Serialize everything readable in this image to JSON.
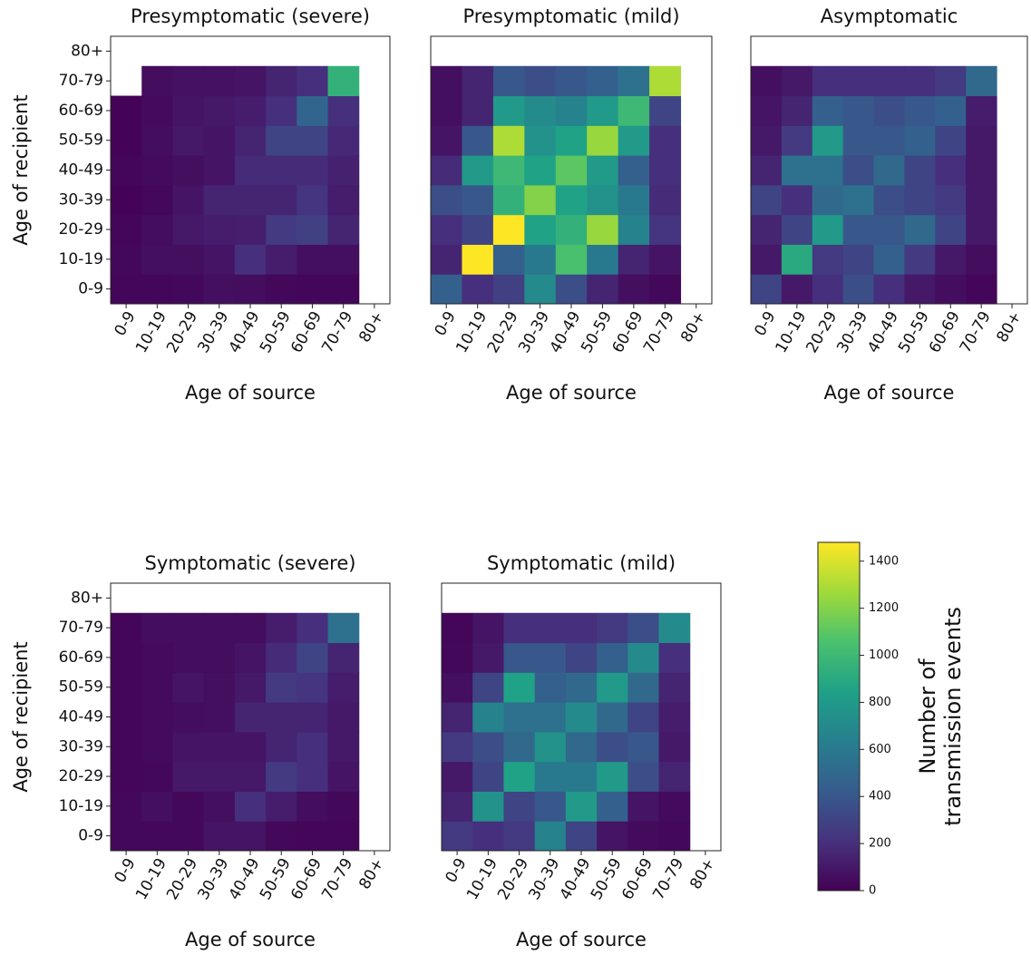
{
  "chart_data": [
    {
      "type": "heatmap",
      "title": "Presymptomatic (severe)",
      "x_label": "Age of source",
      "y_label": "Age of recipient",
      "x_categories": [
        "0-9",
        "10-19",
        "20-29",
        "30-39",
        "40-49",
        "50-59",
        "60-69",
        "70-79",
        "80+"
      ],
      "y_categories": [
        "0-9",
        "10-19",
        "20-29",
        "30-39",
        "40-49",
        "50-59",
        "60-69",
        "70-79",
        "80+"
      ],
      "values": [
        [
          20,
          20,
          30,
          60,
          50,
          30,
          20,
          20,
          null
        ],
        [
          30,
          60,
          60,
          80,
          200,
          120,
          60,
          60,
          null
        ],
        [
          20,
          50,
          100,
          120,
          130,
          250,
          280,
          150,
          null
        ],
        [
          10,
          30,
          80,
          150,
          150,
          150,
          220,
          120,
          null
        ],
        [
          20,
          40,
          60,
          80,
          180,
          180,
          180,
          140,
          null
        ],
        [
          10,
          50,
          100,
          80,
          150,
          300,
          300,
          170,
          null
        ],
        [
          10,
          40,
          80,
          100,
          120,
          200,
          480,
          200,
          null
        ],
        [
          null,
          50,
          70,
          70,
          80,
          150,
          200,
          950,
          null
        ],
        [
          null,
          null,
          null,
          null,
          null,
          null,
          null,
          null,
          null
        ]
      ]
    },
    {
      "type": "heatmap",
      "title": "Presymptomatic (mild)",
      "x_label": "Age of source",
      "x_categories": [
        "0-9",
        "10-19",
        "20-29",
        "30-39",
        "40-49",
        "50-59",
        "60-69",
        "70-79",
        "80+"
      ],
      "values": [
        [
          450,
          200,
          280,
          700,
          350,
          150,
          60,
          30,
          null
        ],
        [
          150,
          1480,
          450,
          600,
          1050,
          600,
          150,
          80,
          null
        ],
        [
          200,
          300,
          1480,
          850,
          950,
          1250,
          650,
          220,
          null
        ],
        [
          350,
          400,
          950,
          1200,
          850,
          750,
          600,
          180,
          null
        ],
        [
          180,
          800,
          1000,
          850,
          1100,
          800,
          450,
          200,
          null
        ],
        [
          80,
          400,
          1300,
          750,
          850,
          1250,
          800,
          200,
          null
        ],
        [
          60,
          150,
          800,
          700,
          650,
          800,
          1000,
          300,
          null
        ],
        [
          60,
          150,
          400,
          350,
          400,
          450,
          550,
          1300,
          null
        ],
        [
          null,
          null,
          null,
          null,
          null,
          null,
          null,
          null,
          null
        ]
      ]
    },
    {
      "type": "heatmap",
      "title": "Asymptomatic",
      "x_label": "Age of source",
      "x_categories": [
        "0-9",
        "10-19",
        "20-29",
        "30-39",
        "40-49",
        "50-59",
        "60-69",
        "70-79",
        "80+"
      ],
      "values": [
        [
          300,
          100,
          200,
          350,
          200,
          100,
          50,
          20,
          null
        ],
        [
          100,
          900,
          250,
          300,
          450,
          250,
          100,
          50,
          null
        ],
        [
          150,
          300,
          800,
          400,
          400,
          500,
          300,
          100,
          null
        ],
        [
          300,
          200,
          500,
          550,
          350,
          300,
          250,
          100,
          null
        ],
        [
          150,
          550,
          550,
          350,
          500,
          300,
          200,
          100,
          null
        ],
        [
          100,
          250,
          800,
          400,
          400,
          450,
          300,
          100,
          null
        ],
        [
          80,
          150,
          450,
          400,
          350,
          400,
          450,
          120,
          null
        ],
        [
          60,
          100,
          200,
          200,
          200,
          200,
          250,
          500,
          null
        ],
        [
          null,
          null,
          null,
          null,
          null,
          null,
          null,
          null,
          null
        ]
      ]
    },
    {
      "type": "heatmap",
      "title": "Symptomatic (severe)",
      "x_label": "Age of source",
      "y_label": "Age of recipient",
      "x_categories": [
        "0-9",
        "10-19",
        "20-29",
        "30-39",
        "40-49",
        "50-59",
        "60-69",
        "70-79",
        "80+"
      ],
      "y_categories": [
        "0-9",
        "10-19",
        "20-29",
        "30-39",
        "40-49",
        "50-59",
        "60-69",
        "70-79",
        "80+"
      ],
      "values": [
        [
          30,
          30,
          30,
          80,
          80,
          30,
          20,
          20,
          null
        ],
        [
          30,
          60,
          30,
          60,
          200,
          120,
          50,
          30,
          null
        ],
        [
          20,
          30,
          100,
          100,
          100,
          250,
          200,
          80,
          null
        ],
        [
          20,
          40,
          80,
          80,
          80,
          150,
          200,
          100,
          null
        ],
        [
          20,
          40,
          50,
          60,
          150,
          150,
          150,
          100,
          null
        ],
        [
          20,
          40,
          80,
          60,
          100,
          250,
          220,
          120,
          null
        ],
        [
          20,
          40,
          50,
          50,
          80,
          180,
          300,
          150,
          null
        ],
        [
          20,
          50,
          50,
          50,
          50,
          120,
          200,
          550,
          null
        ],
        [
          null,
          null,
          null,
          null,
          null,
          null,
          null,
          null,
          null
        ]
      ]
    },
    {
      "type": "heatmap",
      "title": "Symptomatic (mild)",
      "x_label": "Age of source",
      "x_categories": [
        "0-9",
        "10-19",
        "20-29",
        "30-39",
        "40-49",
        "50-59",
        "60-69",
        "70-79",
        "80+"
      ],
      "values": [
        [
          250,
          200,
          250,
          650,
          300,
          80,
          40,
          30,
          null
        ],
        [
          150,
          750,
          300,
          400,
          800,
          450,
          80,
          40,
          null
        ],
        [
          100,
          300,
          850,
          600,
          600,
          800,
          350,
          150,
          null
        ],
        [
          250,
          350,
          500,
          750,
          500,
          350,
          400,
          100,
          null
        ],
        [
          150,
          650,
          550,
          550,
          700,
          500,
          300,
          120,
          null
        ],
        [
          60,
          300,
          850,
          450,
          500,
          800,
          500,
          150,
          null
        ],
        [
          30,
          100,
          400,
          400,
          300,
          450,
          700,
          200,
          null
        ],
        [
          20,
          80,
          200,
          200,
          200,
          250,
          350,
          700,
          null
        ],
        [
          null,
          null,
          null,
          null,
          null,
          null,
          null,
          null,
          null
        ]
      ]
    }
  ],
  "colorbar": {
    "colormap": "viridis",
    "label": [
      "Number of",
      "transmission events"
    ],
    "lim": [
      0,
      1480
    ],
    "ticks": [
      0,
      200,
      400,
      600,
      800,
      1000,
      1200,
      1400
    ]
  }
}
